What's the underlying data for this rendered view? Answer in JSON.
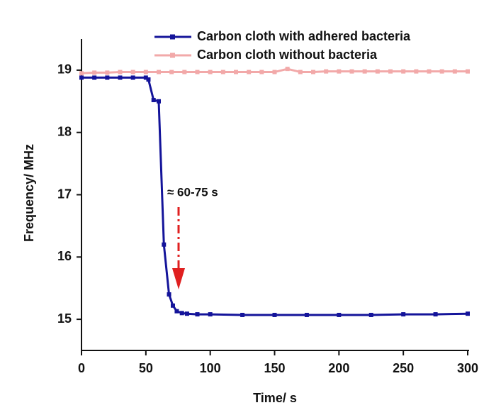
{
  "chart_data": {
    "type": "line",
    "x_label": "Time/ s",
    "y_label": "Frequency/ MHz",
    "annotation": "≈ 60-75 s",
    "xlim": [
      0,
      300
    ],
    "xticks": [
      0,
      50,
      100,
      150,
      200,
      250,
      300
    ],
    "ylim": [
      14.5,
      19.5
    ],
    "yticks": [
      15,
      16,
      17,
      18,
      19
    ],
    "legend": "top-right",
    "series": [
      {
        "name": "Carbon cloth with adhered bacteria",
        "color": "#14149a",
        "x": [
          0,
          10,
          20,
          30,
          40,
          50,
          52,
          56,
          60,
          64,
          68,
          71,
          74,
          78,
          82,
          90,
          100,
          125,
          150,
          175,
          200,
          225,
          250,
          275,
          300
        ],
        "values": [
          18.88,
          18.88,
          18.88,
          18.88,
          18.88,
          18.88,
          18.85,
          18.52,
          18.5,
          16.2,
          15.4,
          15.22,
          15.13,
          15.1,
          15.09,
          15.08,
          15.08,
          15.07,
          15.07,
          15.07,
          15.07,
          15.07,
          15.08,
          15.08,
          15.09
        ]
      },
      {
        "name": "Carbon cloth without bacteria",
        "color": "#f2a9a9",
        "x": [
          0,
          10,
          20,
          30,
          40,
          50,
          60,
          70,
          80,
          90,
          100,
          110,
          120,
          130,
          140,
          150,
          160,
          170,
          180,
          190,
          200,
          210,
          220,
          230,
          240,
          250,
          260,
          270,
          280,
          290,
          300
        ],
        "values": [
          18.95,
          18.96,
          18.96,
          18.97,
          18.97,
          18.97,
          18.97,
          18.97,
          18.97,
          18.97,
          18.97,
          18.97,
          18.97,
          18.97,
          18.97,
          18.97,
          19.02,
          18.97,
          18.97,
          18.98,
          18.98,
          18.98,
          18.98,
          18.98,
          18.98,
          18.98,
          18.98,
          18.98,
          18.98,
          18.98,
          18.98
        ]
      }
    ]
  }
}
